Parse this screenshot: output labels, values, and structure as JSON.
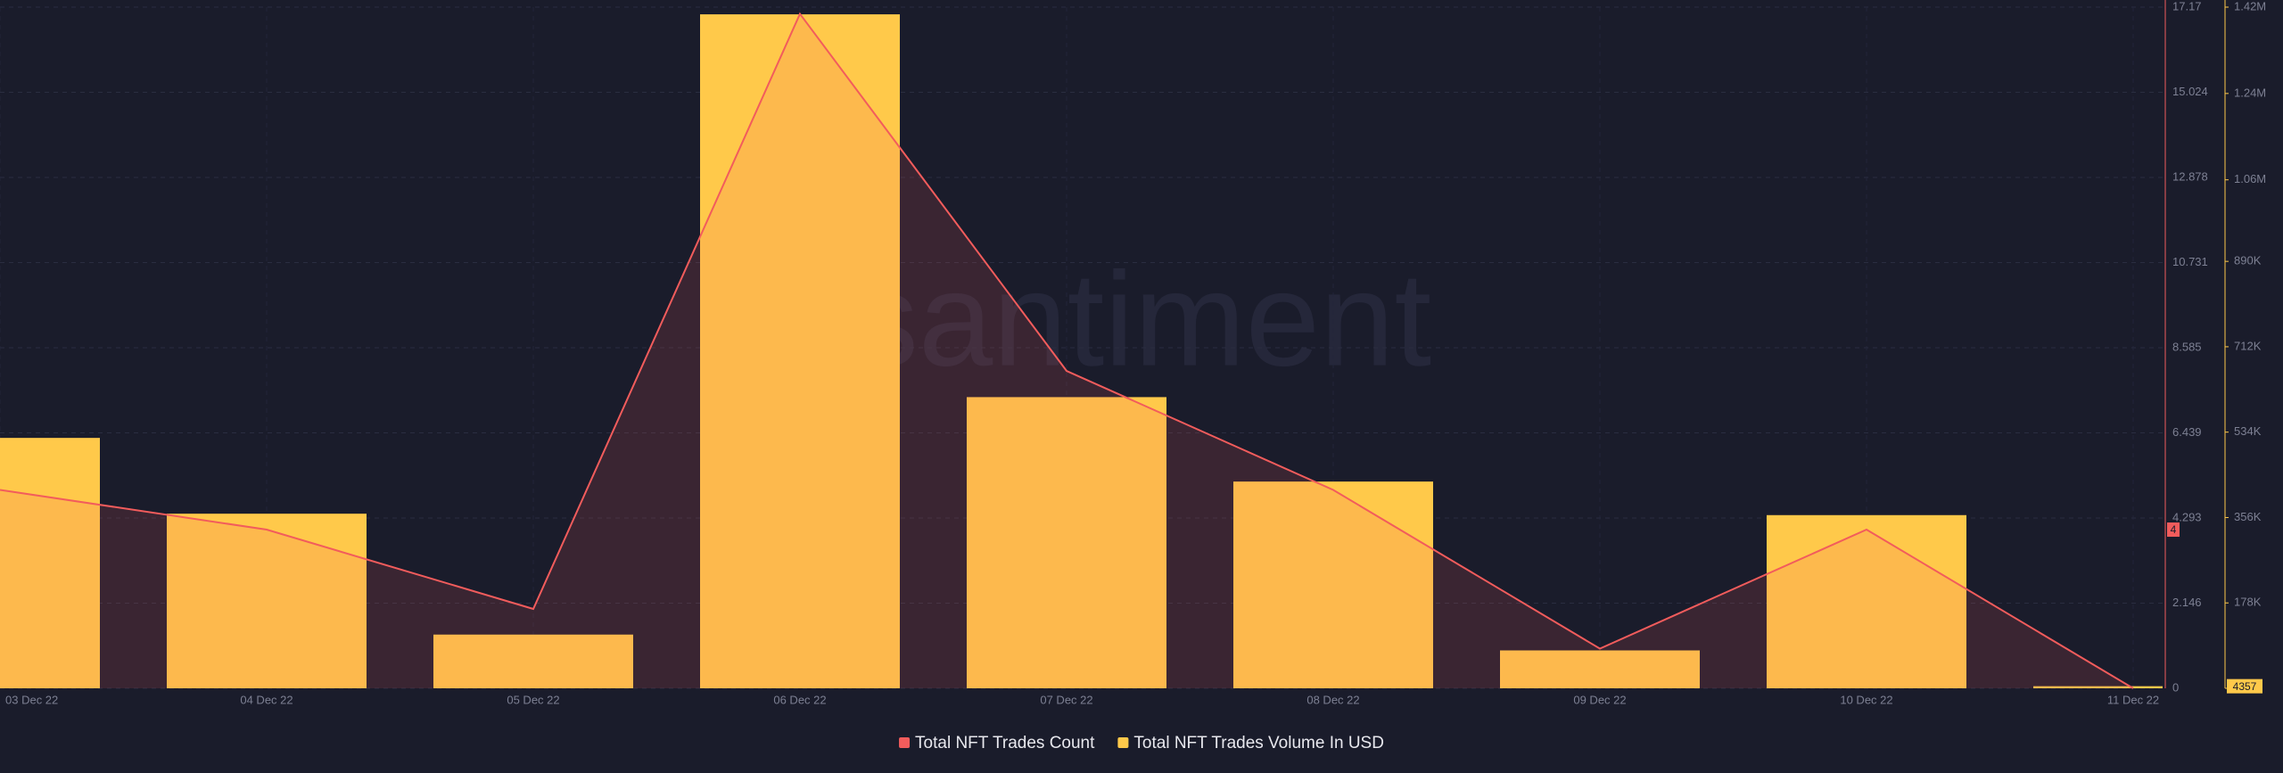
{
  "chart_data": {
    "type": "bar-line",
    "watermark": "santiment",
    "categories": [
      "03 Dec 22",
      "04 Dec 22",
      "05 Dec 22",
      "06 Dec 22",
      "07 Dec 22",
      "08 Dec 22",
      "09 Dec 22",
      "10 Dec 22",
      "11 Dec 22"
    ],
    "series": [
      {
        "name": "Total NFT Trades Count",
        "type": "line",
        "color": "#f25c5c",
        "axis": "y",
        "values": [
          5,
          4,
          2,
          17,
          8,
          5,
          1,
          4,
          0
        ]
      },
      {
        "name": "Total NFT Trades Volume In USD",
        "type": "bar",
        "color": "#ffc94a",
        "axis": "y2",
        "values": [
          522000,
          364000,
          112000,
          1405000,
          607000,
          431000,
          79000,
          361000,
          4357
        ]
      }
    ],
    "ylim": [
      0,
      17.17
    ],
    "yticks": [
      0,
      2.146,
      4.293,
      6.439,
      8.585,
      10.731,
      12.878,
      15.024,
      17.17
    ],
    "y2lim": [
      0,
      1420000
    ],
    "y2ticks": [
      0,
      {
        "value": 178000,
        "label": "178K"
      },
      {
        "value": 356000,
        "label": "356K"
      },
      {
        "value": 534000,
        "label": "534K"
      },
      {
        "value": 712000,
        "label": "712K"
      },
      {
        "value": 890000,
        "label": "890K"
      },
      {
        "value": 1060000,
        "label": "1.06M"
      },
      {
        "value": 1240000,
        "label": "1.24M"
      },
      {
        "value": 1420000,
        "label": "1.42M"
      }
    ],
    "y_marker": 4,
    "y2_marker": 4357,
    "grid": true
  }
}
